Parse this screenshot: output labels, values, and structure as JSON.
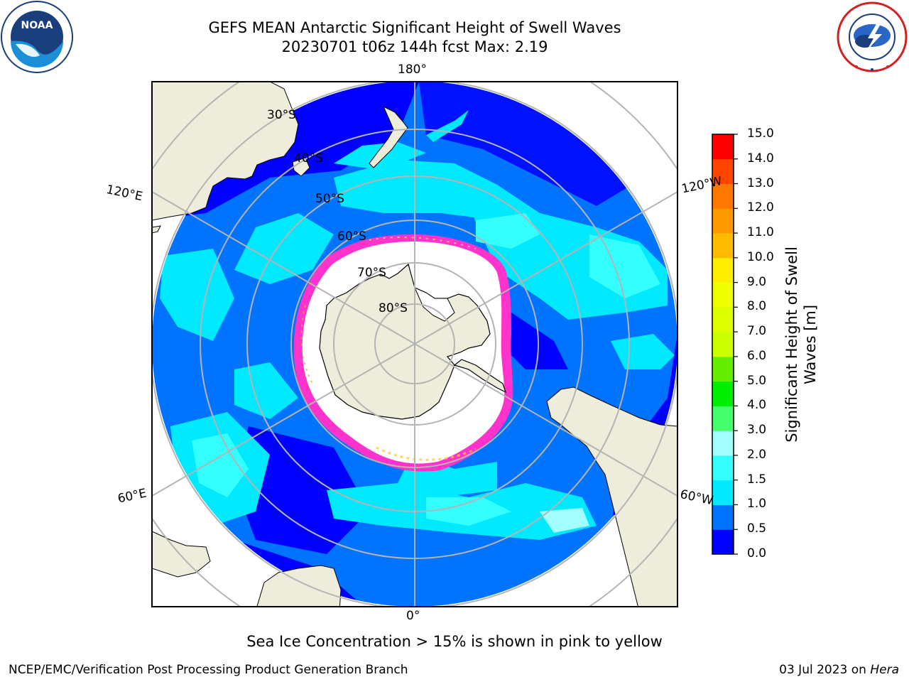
{
  "title": {
    "line1": "GEFS MEAN Antarctic Significant Height of Swell Waves",
    "line2": "20230701 t06z 144h fcst   Max: 2.19"
  },
  "map": {
    "projection": "south-polar-stereographic",
    "longitude_labels": {
      "top": "180°",
      "bottom": "0°",
      "upper_left": "120°E",
      "upper_right": "120°W",
      "lower_left": "60°E",
      "lower_right": "60°W"
    },
    "latitude_labels": [
      "30°S",
      "40°S",
      "50°S",
      "60°S",
      "70°S",
      "80°S"
    ],
    "colors": {
      "land": "#eeecda",
      "ice_sheet": "#ffffff",
      "sea_ice": "#ff33cc",
      "grid": "#b4b4b4"
    }
  },
  "colorbar": {
    "label_line1": "Significant Height of Swell",
    "label_line2": "Waves [m]",
    "ticks": [
      "15.0",
      "14.0",
      "13.0",
      "12.0",
      "11.0",
      "10.0",
      "9.0",
      "8.0",
      "7.0",
      "6.0",
      "5.0",
      "4.0",
      "3.0",
      "2.0",
      "1.5",
      "1.0",
      "0.5",
      "0.0"
    ],
    "bins": [
      {
        "range": "0.0-0.5",
        "color": "#0000ff"
      },
      {
        "range": "0.5-1.0",
        "color": "#0073ff"
      },
      {
        "range": "1.0-1.5",
        "color": "#00e9ff"
      },
      {
        "range": "1.5-2.0",
        "color": "#33ffff"
      },
      {
        "range": "2.0-3.0",
        "color": "#a3ffff"
      },
      {
        "range": "3.0-4.0",
        "color": "#46ff6e"
      },
      {
        "range": "4.0-5.0",
        "color": "#00ee00"
      },
      {
        "range": "5.0-6.0",
        "color": "#66ee00"
      },
      {
        "range": "6.0-7.0",
        "color": "#ccff00"
      },
      {
        "range": "7.0-8.0",
        "color": "#ddff00"
      },
      {
        "range": "8.0-9.0",
        "color": "#eeff00"
      },
      {
        "range": "9.0-10.0",
        "color": "#ffee00"
      },
      {
        "range": "10.0-11.0",
        "color": "#ffbb00"
      },
      {
        "range": "11.0-12.0",
        "color": "#ff9900"
      },
      {
        "range": "12.0-13.0",
        "color": "#ff7700"
      },
      {
        "range": "13.0-14.0",
        "color": "#ff4400"
      },
      {
        "range": "14.0-15.0",
        "color": "#ff0000"
      }
    ]
  },
  "footer": {
    "note": "Sea Ice Concentration > 15% is shown in pink to yellow",
    "credit_left": "NCEP/EMC/Verification Post Processing Product Generation Branch",
    "credit_right_date": "03 Jul 2023 on ",
    "credit_right_host": "Hera"
  },
  "logos": {
    "left": {
      "icon": "noaa-logo",
      "text": "NOAA"
    },
    "right": {
      "icon": "national-weather-service-logo",
      "text": "NATIONAL WEATHER SERVICE"
    }
  }
}
